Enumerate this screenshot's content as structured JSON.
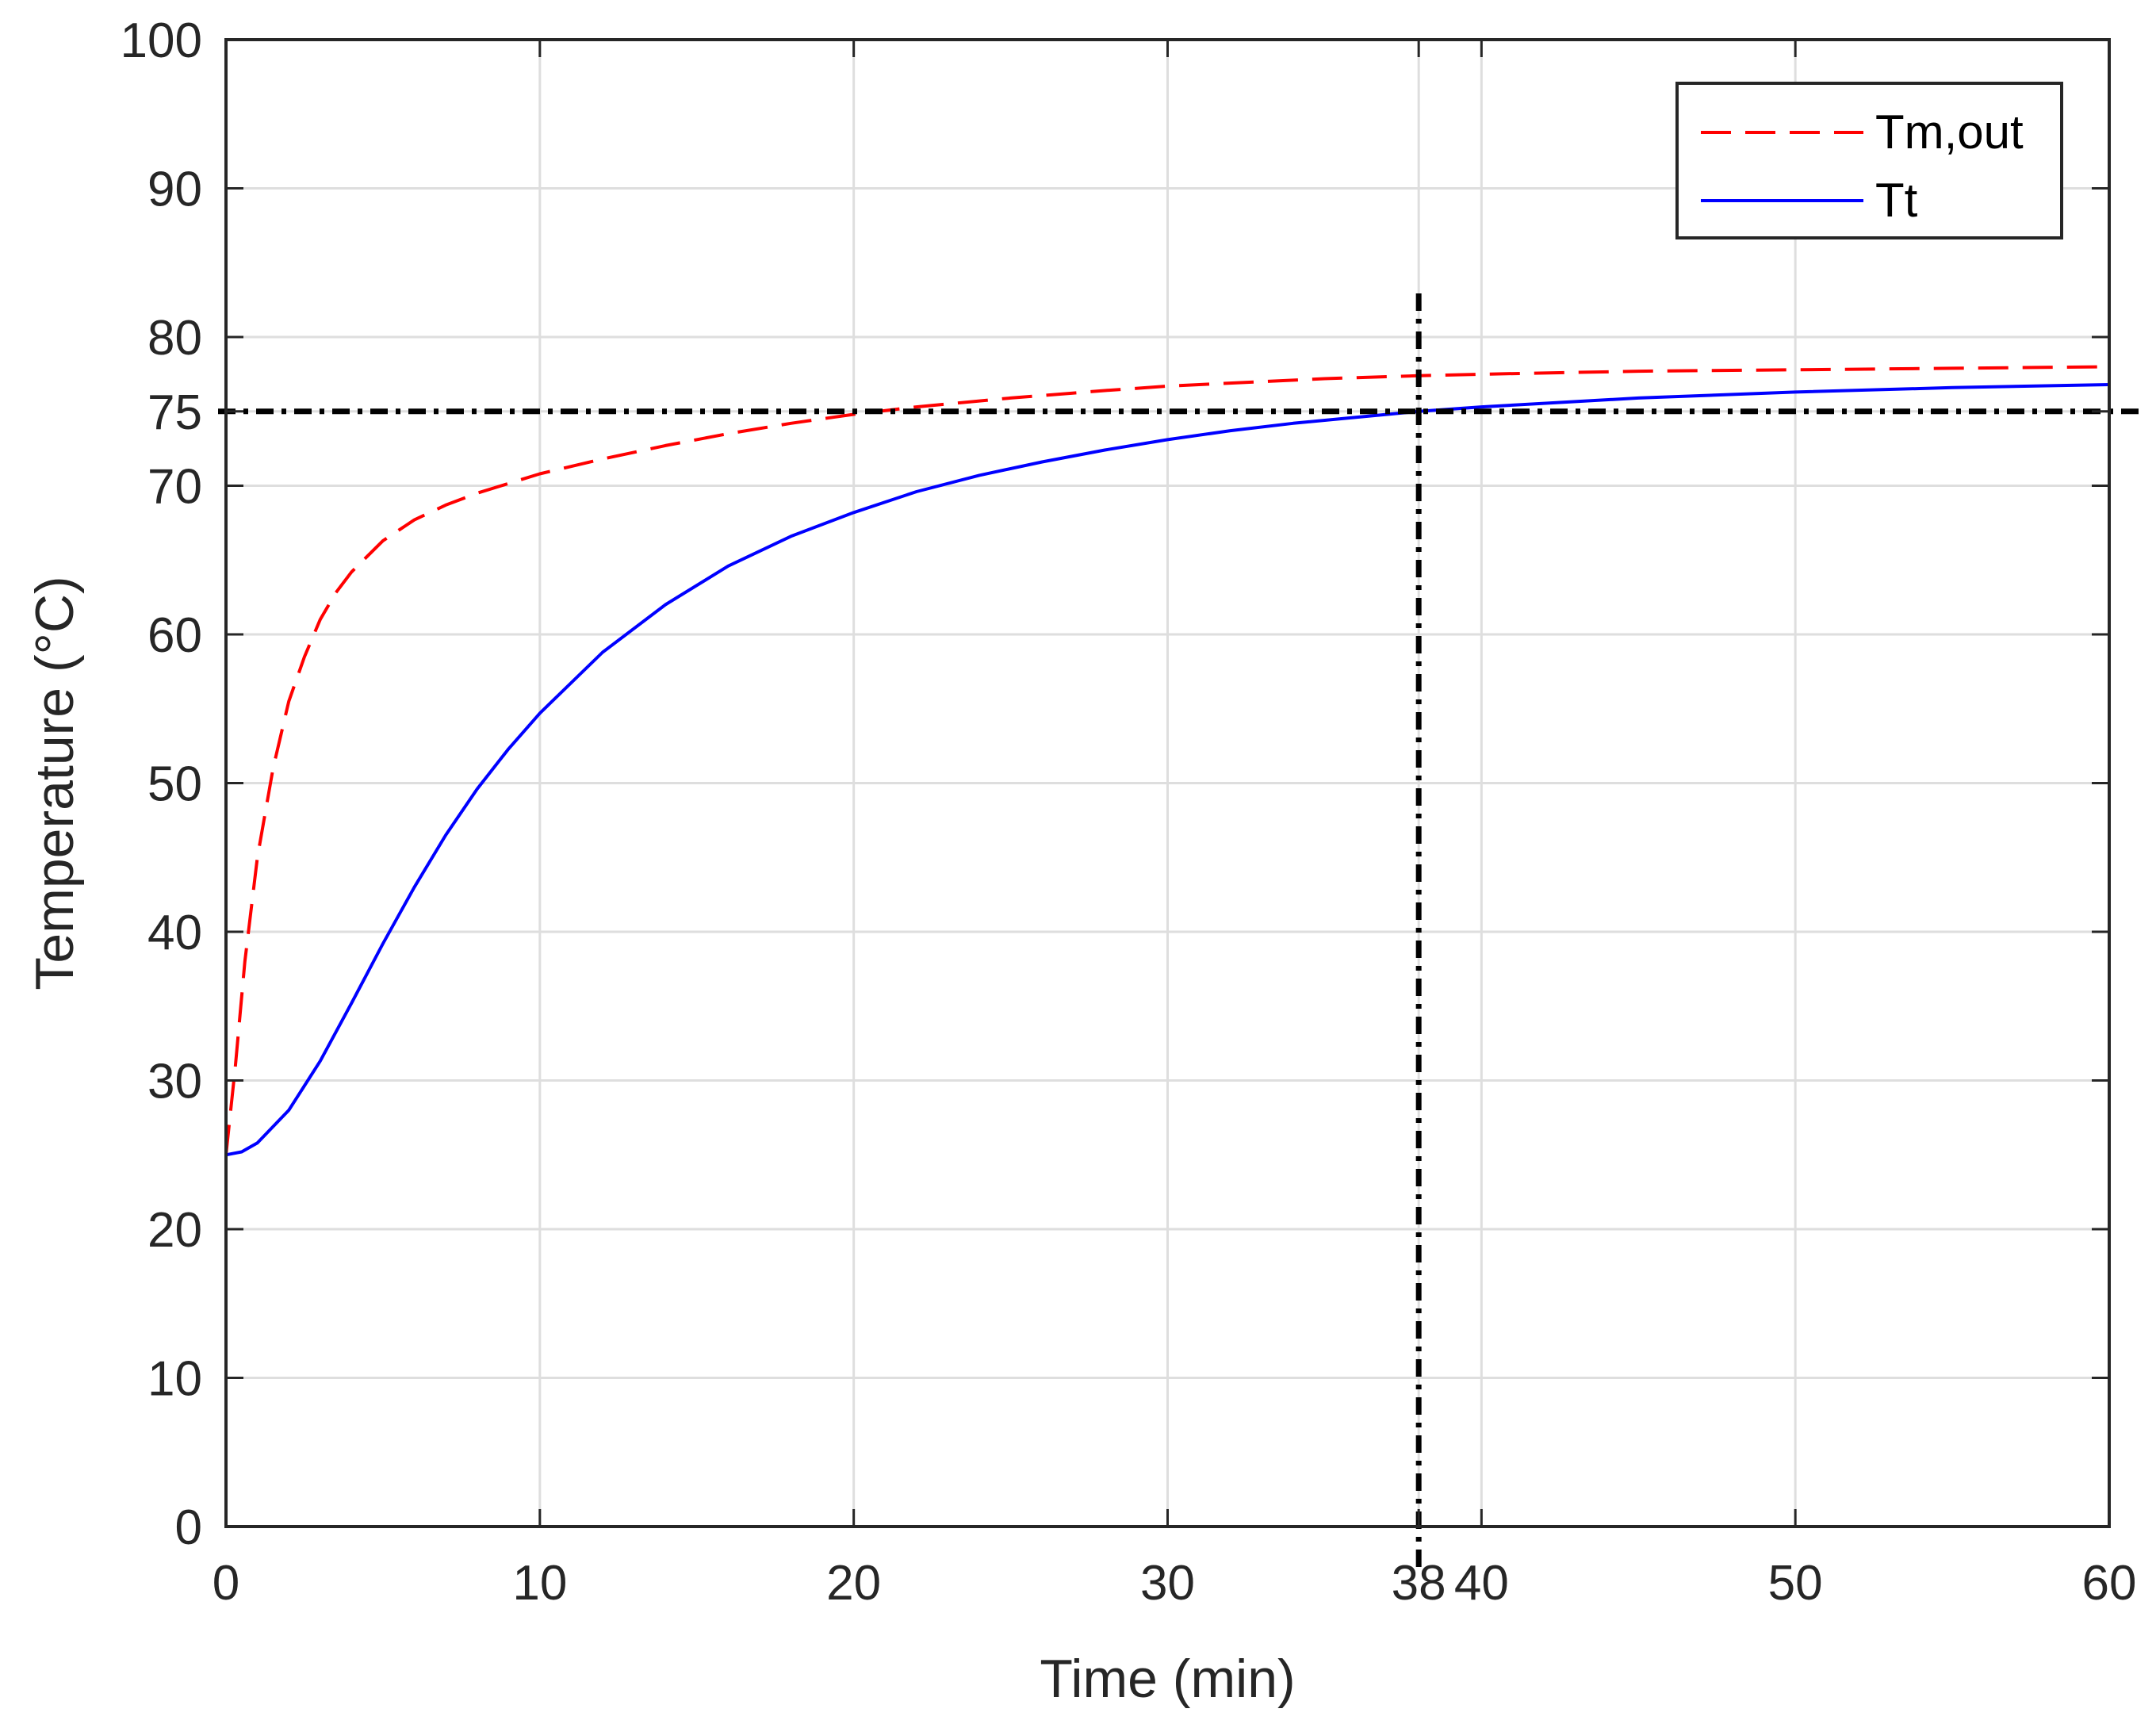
{
  "chart_data": {
    "type": "line",
    "title": "",
    "xlabel": "Time (min)",
    "ylabel": "Temperature (°C)",
    "xlim": [
      0,
      60
    ],
    "ylim": [
      0,
      100
    ],
    "xticks": [
      0,
      10,
      20,
      30,
      38,
      40,
      50,
      60
    ],
    "yticks": [
      0,
      10,
      20,
      30,
      40,
      50,
      60,
      70,
      75,
      80,
      90,
      100
    ],
    "grid": true,
    "legend_position": "top-right",
    "series": [
      {
        "name": "Tm,out",
        "style": "dashed",
        "color": "#ff0000",
        "x": [
          0,
          0.3,
          0.6,
          1,
          1.5,
          2,
          2.5,
          3,
          3.5,
          4,
          5,
          6,
          7,
          8,
          10,
          12,
          14,
          16,
          18,
          20,
          22,
          25,
          28,
          30,
          35,
          38,
          40,
          45,
          50,
          55,
          60
        ],
        "y": [
          25,
          31,
          38,
          45,
          51,
          55.5,
          58.5,
          61,
          62.8,
          64.2,
          66.3,
          67.7,
          68.7,
          69.5,
          70.8,
          71.8,
          72.7,
          73.5,
          74.2,
          74.8,
          75.3,
          75.9,
          76.4,
          76.7,
          77.2,
          77.4,
          77.5,
          77.7,
          77.8,
          77.9,
          78
        ]
      },
      {
        "name": "Tt",
        "style": "solid",
        "color": "#0000ff",
        "x": [
          0,
          0.5,
          1,
          2,
          3,
          4,
          5,
          6,
          7,
          8,
          9,
          10,
          12,
          14,
          16,
          18,
          20,
          22,
          24,
          26,
          28,
          30,
          32,
          34,
          36,
          38,
          40,
          45,
          50,
          55,
          60
        ],
        "y": [
          25,
          25.2,
          25.8,
          28,
          31.3,
          35.2,
          39.2,
          43,
          46.5,
          49.6,
          52.3,
          54.7,
          58.8,
          62,
          64.6,
          66.6,
          68.2,
          69.6,
          70.7,
          71.6,
          72.4,
          73.1,
          73.7,
          74.2,
          74.6,
          75,
          75.3,
          75.9,
          76.3,
          76.6,
          76.8
        ]
      }
    ],
    "reference_lines": [
      {
        "orientation": "horizontal",
        "value": 75,
        "style": "dash-dot",
        "color": "#000000"
      },
      {
        "orientation": "vertical",
        "value": 38,
        "style": "dash-dot",
        "color": "#000000"
      }
    ]
  }
}
